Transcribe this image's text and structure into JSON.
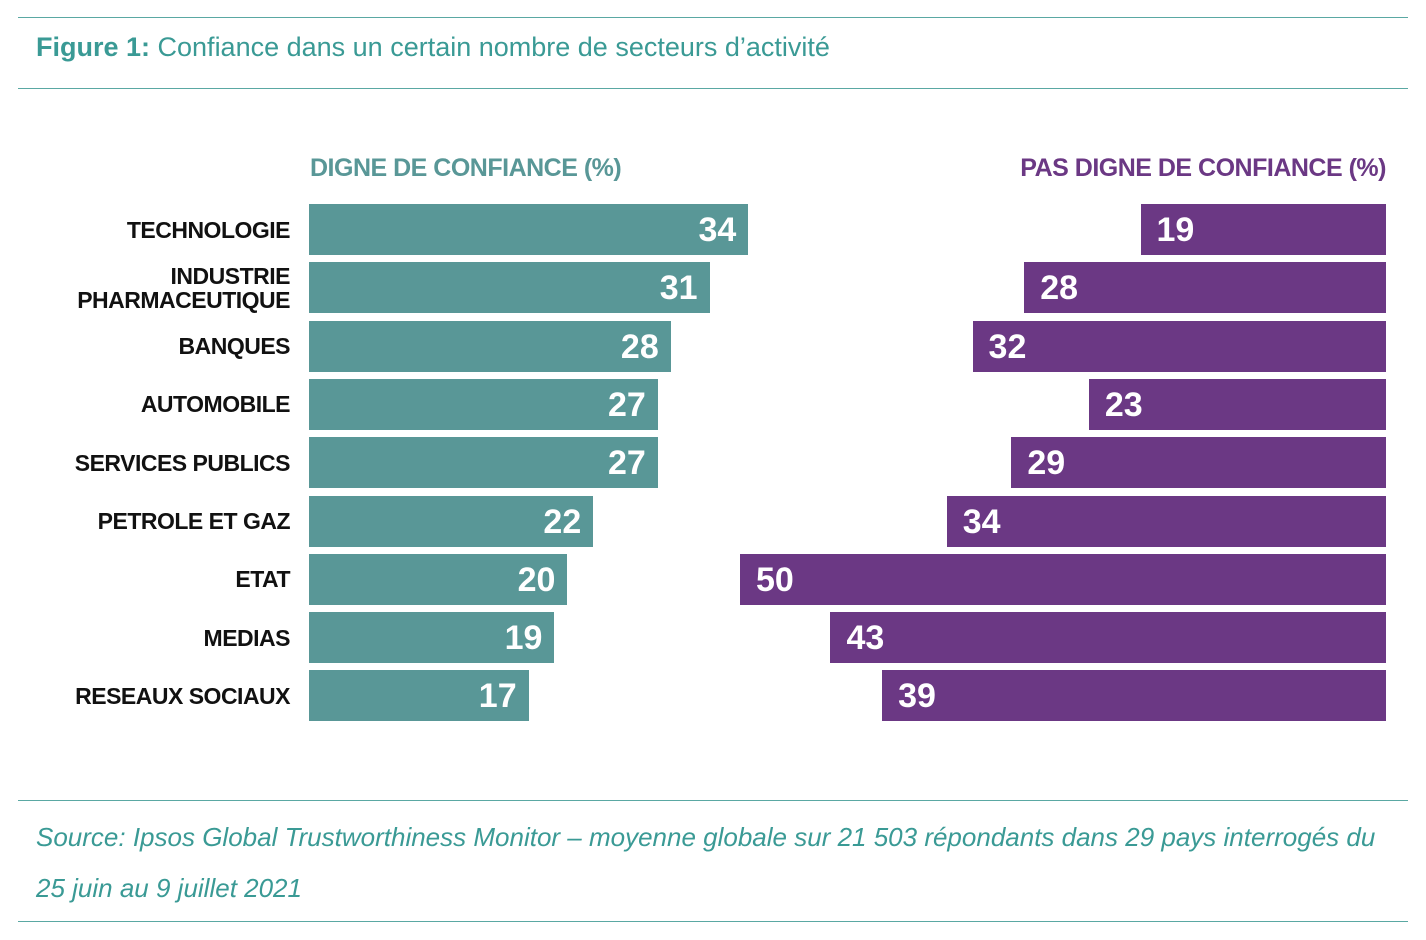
{
  "chart_data": {
    "type": "bar",
    "title_label": "Figure 1:",
    "title": "Confiance dans un certain nombre de secteurs d’activité",
    "categories": [
      "TECHNOLOGIE",
      "INDUSTRIE PHARMACEUTIQUE",
      "BANQUES",
      "AUTOMOBILE",
      "SERVICES PUBLICS",
      "PETROLE ET GAZ",
      "ETAT",
      "MEDIAS",
      "RESEAUX SOCIAUX"
    ],
    "series": [
      {
        "name": "DIGNE DE CONFIANCE (%)",
        "color": "#599797",
        "values": [
          34,
          31,
          28,
          27,
          27,
          22,
          20,
          19,
          17
        ]
      },
      {
        "name": "PAS DIGNE DE CONFIANCE (%)",
        "color": "#6b3884",
        "values": [
          19,
          28,
          32,
          23,
          29,
          34,
          50,
          43,
          39
        ]
      }
    ],
    "source": "Source: Ipsos Global Trustworthiness Monitor – moyenne globale sur 21 503 répondants dans 29 pays interrogés du 25 juin au 9 juillet 2021"
  }
}
